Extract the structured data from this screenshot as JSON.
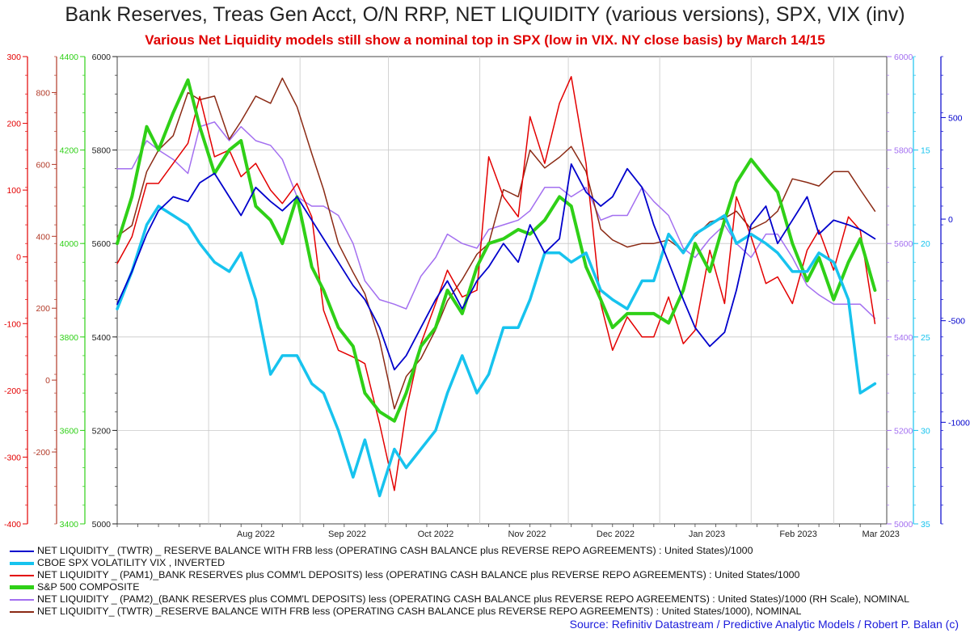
{
  "title": "Bank Reserves, Treas Gen Acct, O/N RRP, NET LIQUIDITY (various versions), SPX, VIX (inv)",
  "subtitle": "Various Net Liquidity models still show a nominal top in SPX (low in VIX. NY close basis) by March 14/15",
  "source": "Source: Refinitiv Datastream / Predictive Analytic Models / Robert P. Balan (c)",
  "colors": {
    "twtr": "#0000cc",
    "vix": "#17c3ee",
    "pam1": "#e30000",
    "spx": "#2fd017",
    "pam2": "#a36ff0",
    "twtr_nominal": "#8b2a14",
    "grid": "#c8c8c8",
    "source": "#1a1adb"
  },
  "chart_data": {
    "type": "line",
    "x_dates": [
      "2022-07-01",
      "2022-07-06",
      "2022-07-11",
      "2022-07-15",
      "2022-07-20",
      "2022-07-25",
      "2022-07-29",
      "2022-08-03",
      "2022-08-08",
      "2022-08-12",
      "2022-08-17",
      "2022-08-22",
      "2022-08-26",
      "2022-08-31",
      "2022-09-05",
      "2022-09-09",
      "2022-09-14",
      "2022-09-19",
      "2022-09-23",
      "2022-09-28",
      "2022-10-03",
      "2022-10-07",
      "2022-10-12",
      "2022-10-17",
      "2022-10-21",
      "2022-10-26",
      "2022-10-31",
      "2022-11-04",
      "2022-11-09",
      "2022-11-14",
      "2022-11-18",
      "2022-11-23",
      "2022-11-28",
      "2022-12-02",
      "2022-12-07",
      "2022-12-12",
      "2022-12-16",
      "2022-12-21",
      "2022-12-26",
      "2022-12-30",
      "2023-01-04",
      "2023-01-09",
      "2023-01-13",
      "2023-01-18",
      "2023-01-23",
      "2023-01-27",
      "2023-02-01",
      "2023-02-06",
      "2023-02-10",
      "2023-02-15",
      "2023-02-20",
      "2023-02-24",
      "2023-03-01",
      "2023-03-06",
      "2023-03-10",
      "2023-03-15"
    ],
    "x_ticks": [
      "Aug 2022",
      "Sep 2022",
      "Oct 2022",
      "Nov 2022",
      "Dec 2022",
      "Jan 2023",
      "Feb 2023",
      "Mar 2023"
    ],
    "axes": [
      {
        "id": "pam1_left",
        "color": "#e30000",
        "range": [
          -400,
          300
        ],
        "ticks": [
          "300",
          "200",
          "100",
          "0",
          "-100",
          "-200",
          "-300",
          "-400"
        ]
      },
      {
        "id": "twtr_left",
        "color": "#b23a28",
        "range": [
          -400,
          900
        ],
        "ticks": [
          "800",
          "600",
          "400",
          "200",
          "0",
          "-200"
        ]
      },
      {
        "id": "spx_left",
        "color": "#2fd017",
        "range": [
          3400,
          4400
        ],
        "ticks": [
          "4400",
          "4200",
          "4000",
          "3800",
          "3600",
          "3400"
        ]
      },
      {
        "id": "main_left",
        "color": "#222222",
        "range": [
          5000,
          6000
        ],
        "ticks": [
          "6000",
          "5800",
          "5600",
          "5400",
          "5200",
          "5000"
        ]
      },
      {
        "id": "pam2_right",
        "color": "#a36ff0",
        "range": [
          5000,
          6000
        ],
        "ticks": [
          "6000",
          "5800",
          "5600",
          "5400",
          "5200",
          "5000"
        ]
      },
      {
        "id": "vix_right",
        "color": "#17c3ee",
        "range": [
          35,
          10
        ],
        "inverted": true,
        "ticks": [
          "15",
          "20",
          "25",
          "30",
          "35"
        ]
      },
      {
        "id": "twtr_right",
        "color": "#0000cc",
        "range": [
          -1500,
          800
        ],
        "ticks": [
          "500",
          "0",
          "-500",
          "-1000"
        ]
      }
    ],
    "series": [
      {
        "name": "NET LIQUIDITY_ (TWTR) _ RESERVE BALANCE WITH FRB less (OPERATING CASH BALANCE plus REVERSE REPO AGREEMENTS) : United States)/1000",
        "key": "twtr",
        "axis": "main_left",
        "width": 1.8,
        "values": [
          5470,
          5540,
          5620,
          5670,
          5700,
          5690,
          5730,
          5750,
          5700,
          5660,
          5720,
          5690,
          5670,
          5700,
          5650,
          5610,
          5560,
          5510,
          5480,
          5420,
          5330,
          5360,
          5420,
          5480,
          5520,
          5460,
          5520,
          5550,
          5600,
          5560,
          5640,
          5580,
          5610,
          5770,
          5710,
          5680,
          5700,
          5760,
          5720,
          5640,
          5560,
          5480,
          5420,
          5380,
          5410,
          5500,
          5640,
          5680,
          5600,
          5650,
          5700,
          5620,
          5650,
          5640,
          5630,
          5610
        ]
      },
      {
        "name": "CBOE SPX VOLATILITY VIX , INVERTED",
        "key": "vix",
        "axis": "vix_right",
        "width": 3.5,
        "values": [
          23.5,
          21.5,
          19,
          18,
          18.5,
          19,
          20,
          21,
          21.5,
          20.5,
          23,
          27,
          26,
          26,
          27.5,
          28,
          30,
          32.5,
          30.5,
          33.5,
          31,
          32,
          31,
          30,
          28,
          26,
          28,
          27,
          24.5,
          24.5,
          23,
          20.5,
          20.5,
          21,
          20.5,
          22.5,
          23,
          23.5,
          22,
          22,
          19.5,
          20.5,
          19.5,
          19,
          18.5,
          20,
          19.5,
          20,
          20.5,
          21.5,
          21.5,
          20.5,
          21,
          23,
          28,
          27.5
        ]
      },
      {
        "name": "NET LIQUIDITY _ (PAM1)_BANK RESERVES plus COMM'L DEPOSITS) less (OPERATING CASH BALANCE plus REVERSE REPO AGREEMENTS) : United States/1000",
        "key": "pam1",
        "axis": "pam1_left",
        "width": 1.5,
        "values": [
          -10,
          30,
          110,
          110,
          140,
          170,
          240,
          150,
          160,
          120,
          140,
          100,
          80,
          110,
          60,
          -80,
          -140,
          -150,
          -160,
          -250,
          -350,
          -230,
          -130,
          -70,
          -20,
          -60,
          -50,
          150,
          90,
          60,
          210,
          140,
          230,
          270,
          140,
          -70,
          -140,
          -90,
          -120,
          -120,
          -60,
          -130,
          -110,
          10,
          -70,
          90,
          30,
          -40,
          -30,
          -70,
          10,
          40,
          -20,
          60,
          40,
          -100
        ]
      },
      {
        "name": "S&P 500 COMPOSITE",
        "key": "spx",
        "axis": "spx_left",
        "width": 4,
        "values": [
          4000,
          4100,
          4250,
          4200,
          4280,
          4350,
          4250,
          4150,
          4200,
          4220,
          4080,
          4050,
          4000,
          4100,
          3950,
          3900,
          3820,
          3780,
          3680,
          3640,
          3620,
          3680,
          3780,
          3820,
          3900,
          3850,
          3950,
          4000,
          4010,
          4030,
          4020,
          4050,
          4100,
          4080,
          3950,
          3880,
          3820,
          3850,
          3850,
          3850,
          3830,
          3900,
          4000,
          3940,
          4050,
          4130,
          4180,
          4140,
          4110,
          4000,
          3920,
          3970,
          3880,
          3960,
          4010,
          3900
        ]
      },
      {
        "name": "NET LIQUIDITY _ (PAM2)_(BANK RESERVES plus COMM'L DEPOSITS) less (OPERATING CASH BALANCE plus REVERSE REPO AGREEMENTS) : United States)/1000 (RH Scale), NOMINAL",
        "key": "pam2",
        "axis": "pam2_right",
        "width": 1.5,
        "values": [
          5760,
          5760,
          5820,
          5800,
          5780,
          5750,
          5850,
          5860,
          5820,
          5850,
          5820,
          5810,
          5780,
          5700,
          5680,
          5680,
          5660,
          5600,
          5520,
          5480,
          5470,
          5460,
          5530,
          5570,
          5620,
          5600,
          5590,
          5630,
          5640,
          5650,
          5670,
          5720,
          5720,
          5700,
          5720,
          5650,
          5660,
          5660,
          5720,
          5690,
          5660,
          5590,
          5570,
          5610,
          5640,
          5600,
          5570,
          5620,
          5620,
          5570,
          5510,
          5490,
          5470,
          5470,
          5470,
          5440
        ]
      },
      {
        "name": "NET LIQUIDITY_ (TWTR) _RESERVE BALANCE WITH FRB less (OPERATING CASH BALANCE plus REVERSE REPO AGREEMENTS) : United States/1000), NOMINAL",
        "key": "twtr_nominal",
        "axis": "twtr_left",
        "width": 1.5,
        "values": [
          400,
          430,
          580,
          640,
          680,
          800,
          780,
          790,
          670,
          720,
          790,
          770,
          840,
          760,
          630,
          530,
          380,
          300,
          240,
          110,
          -80,
          10,
          60,
          140,
          220,
          280,
          350,
          380,
          530,
          510,
          640,
          590,
          620,
          650,
          580,
          420,
          390,
          370,
          380,
          380,
          390,
          360,
          400,
          440,
          450,
          470,
          420,
          440,
          470,
          560,
          550,
          540,
          580,
          580,
          530,
          470
        ]
      }
    ]
  }
}
